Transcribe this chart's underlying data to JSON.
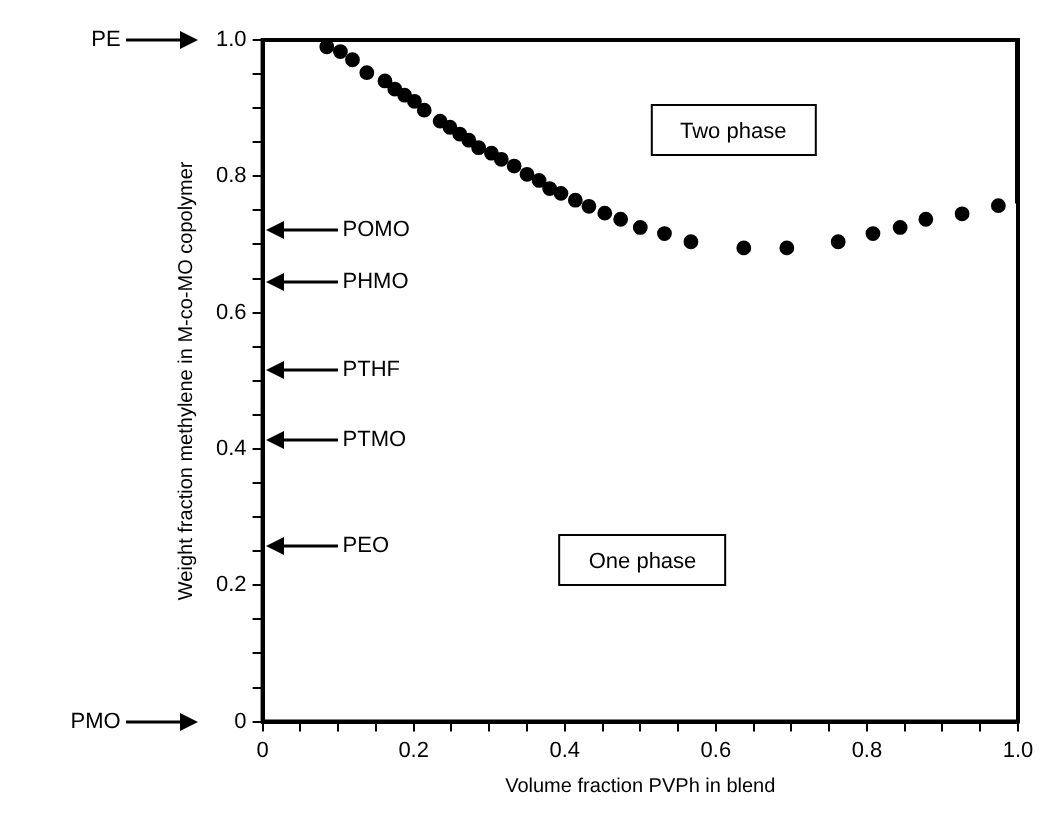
{
  "chart_data": {
    "type": "scatter",
    "xlabel": "Volume fraction PVPh in blend",
    "ylabel": "Weight fraction methylene in M-co-MO copolymer",
    "xlim": [
      0,
      1
    ],
    "ylim": [
      0,
      1
    ],
    "xticks": [
      0,
      {
        "value": 0.05,
        "label": null
      },
      {
        "value": 0.1,
        "label": null
      },
      {
        "value": 0.15,
        "label": null
      },
      0.2,
      {
        "value": 0.25,
        "label": null
      },
      {
        "value": 0.3,
        "label": null
      },
      {
        "value": 0.35,
        "label": null
      },
      0.4,
      {
        "value": 0.45,
        "label": null
      },
      {
        "value": 0.5,
        "label": null
      },
      {
        "value": 0.55,
        "label": null
      },
      0.6,
      {
        "value": 0.65,
        "label": null
      },
      {
        "value": 0.7,
        "label": null
      },
      {
        "value": 0.75,
        "label": null
      },
      0.8,
      {
        "value": 0.85,
        "label": null
      },
      {
        "value": 0.9,
        "label": null
      },
      {
        "value": 0.95,
        "label": null
      },
      {
        "value": 1,
        "label": "1.0"
      }
    ],
    "yticks": [
      0,
      {
        "value": 0.05,
        "label": null
      },
      {
        "value": 0.1,
        "label": null
      },
      {
        "value": 0.15,
        "label": null
      },
      0.2,
      {
        "value": 0.25,
        "label": null
      },
      {
        "value": 0.3,
        "label": null
      },
      {
        "value": 0.35,
        "label": null
      },
      0.4,
      {
        "value": 0.45,
        "label": null
      },
      {
        "value": 0.5,
        "label": null
      },
      {
        "value": 0.55,
        "label": null
      },
      0.6,
      {
        "value": 0.65,
        "label": null
      },
      {
        "value": 0.7,
        "label": null
      },
      {
        "value": 0.75,
        "label": null
      },
      0.8,
      {
        "value": 0.85,
        "label": null
      },
      {
        "value": 0.9,
        "label": null
      },
      {
        "value": 0.95,
        "label": null
      },
      {
        "value": 1,
        "label": "1.0"
      }
    ],
    "grid": false,
    "legend": false,
    "series": [
      {
        "color": "#000000",
        "marker": "circle",
        "x": [
          0.085,
          0.103,
          0.119,
          0.138,
          0.162,
          0.175,
          0.188,
          0.201,
          0.214,
          0.235,
          0.248,
          0.261,
          0.273,
          0.286,
          0.303,
          0.316,
          0.333,
          0.35,
          0.366,
          0.38,
          0.395,
          0.414,
          0.432,
          0.453,
          0.474,
          0.5,
          0.532,
          0.567,
          0.637,
          0.694,
          0.762,
          0.808,
          0.844,
          0.878,
          0.926,
          0.974
        ],
        "values": [
          0.99,
          0.983,
          0.971,
          0.952,
          0.94,
          0.928,
          0.919,
          0.91,
          0.897,
          0.881,
          0.872,
          0.862,
          0.853,
          0.842,
          0.834,
          0.825,
          0.815,
          0.803,
          0.794,
          0.782,
          0.775,
          0.765,
          0.756,
          0.746,
          0.737,
          0.725,
          0.716,
          0.704,
          0.695,
          0.695,
          0.704,
          0.716,
          0.725,
          0.737,
          0.745,
          0.757
        ]
      },
      {
        "type": "line",
        "color": "#000000",
        "x": [
          1,
          1
        ],
        "values": [
          0.76,
          1
        ]
      }
    ],
    "annotations": [
      "PE",
      "POMO",
      "PHMO",
      "PTHF",
      "PTMO",
      "PEO",
      "PMO",
      "Two phase",
      "One phase"
    ]
  }
}
